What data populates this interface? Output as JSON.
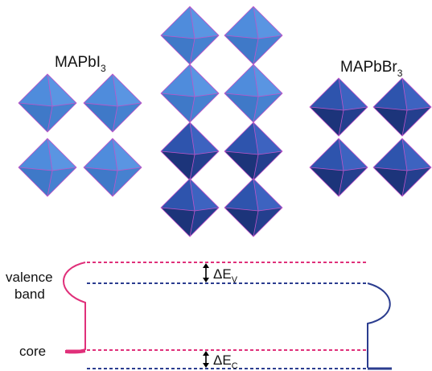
{
  "structures": {
    "left": {
      "name": "MAPbI",
      "subscript": "3"
    },
    "right": {
      "name": "MAPbBr",
      "subscript": "3"
    }
  },
  "energy_diagram": {
    "valence_label_line1": "valence",
    "valence_label_line2": "band",
    "core_label": "core",
    "delta_v": {
      "prefix": "ΔE",
      "sub": "V"
    },
    "delta_c": {
      "prefix": "ΔE",
      "sub": "C"
    }
  },
  "colors": {
    "light_octahedron": "#4a86d6",
    "dark_octahedron": "#2a4da3",
    "edge": "#c054c8",
    "magenta": "#e0307a",
    "navy": "#2b3d8f"
  }
}
